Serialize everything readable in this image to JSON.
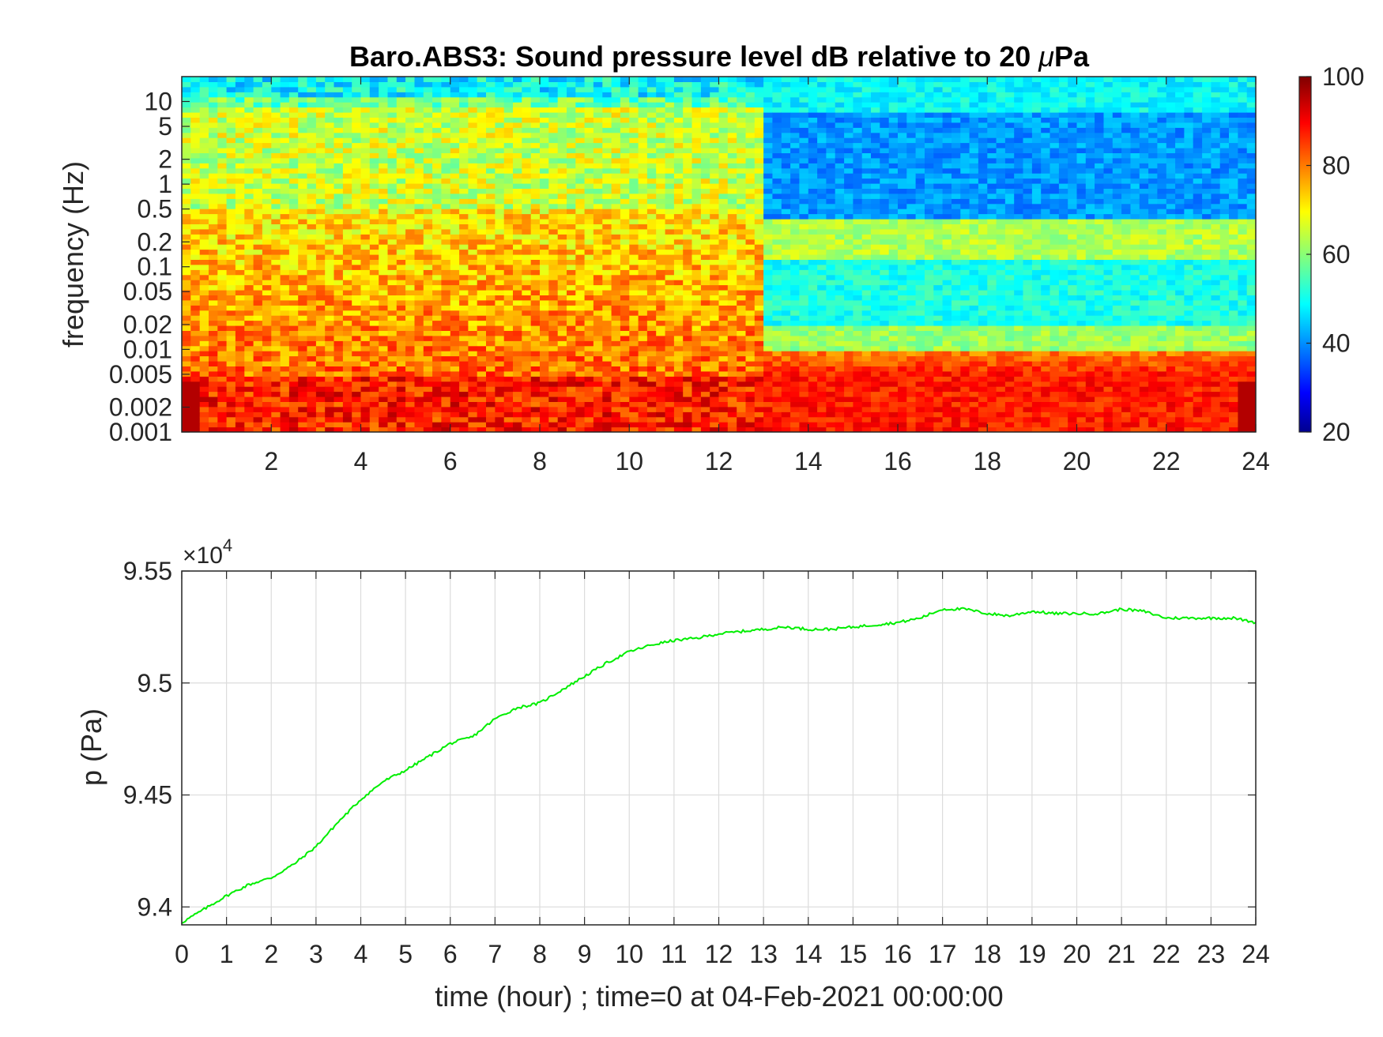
{
  "chart_data": [
    {
      "type": "heatmap",
      "title_prefix": "Baro.ABS3: Sound pressure level dB relative to 20 ",
      "title_mu": "μ",
      "title_suffix": "Pa",
      "xlabel": "",
      "ylabel": "frequency (Hz)",
      "xlim": [
        0,
        24
      ],
      "x_ticks": [
        2,
        4,
        6,
        8,
        10,
        12,
        14,
        16,
        18,
        20,
        22,
        24
      ],
      "x_tick_labels": [
        "2",
        "4",
        "6",
        "8",
        "10",
        "12",
        "14",
        "16",
        "18",
        "20",
        "22",
        "24"
      ],
      "y_scale": "log",
      "ylim": [
        0.001,
        20
      ],
      "y_ticks": [
        0.001,
        0.002,
        0.005,
        0.01,
        0.02,
        0.05,
        0.1,
        0.2,
        0.5,
        1,
        2,
        5,
        10
      ],
      "y_tick_labels": [
        "0.001",
        "0.002",
        "0.005",
        "0.01",
        "0.02",
        "0.05",
        "0.1",
        "0.2",
        "0.5",
        "1",
        "2",
        "5",
        "10"
      ],
      "colormap": "jet",
      "clim": [
        20,
        100
      ],
      "colorbar_ticks": [
        20,
        40,
        60,
        80,
        100
      ],
      "colorbar_tick_labels": [
        "20",
        "40",
        "60",
        "80",
        "100"
      ],
      "summary_levels_db": {
        "low_freq_band_0.001_to_0.005Hz": 88,
        "mid_band_0.01_to_0.5Hz_hours_0_to_13": 80,
        "mid_band_0.01_to_0.1Hz_hours_13_to_24": 52,
        "band_0.2Hz_hours_13_to_24": 64,
        "band_0.5_to_5Hz_hours_0_to_13": 66,
        "band_0.5_to_5Hz_hours_13_to_24": 42,
        "above_10Hz": 50
      }
    },
    {
      "type": "line",
      "ylabel": "p (Pa)",
      "xlabel": "time (hour) ; time=0 at 04-Feb-2021 00:00:00",
      "y_exponent_label": "×10",
      "y_exponent": "4",
      "xlim": [
        0,
        24
      ],
      "ylim": [
        9.392,
        9.55
      ],
      "x_ticks": [
        0,
        1,
        2,
        3,
        4,
        5,
        6,
        7,
        8,
        9,
        10,
        11,
        12,
        13,
        14,
        15,
        16,
        17,
        18,
        19,
        20,
        21,
        22,
        23,
        24
      ],
      "x_tick_labels": [
        "0",
        "1",
        "2",
        "3",
        "4",
        "5",
        "6",
        "7",
        "8",
        "9",
        "10",
        "11",
        "12",
        "13",
        "14",
        "15",
        "16",
        "17",
        "18",
        "19",
        "20",
        "21",
        "22",
        "23",
        "24"
      ],
      "y_ticks": [
        9.4,
        9.45,
        9.5,
        9.55
      ],
      "y_tick_labels": [
        "9.4",
        "9.45",
        "9.5",
        "9.55"
      ],
      "grid": true,
      "series": [
        {
          "color": "#00ee00",
          "x": [
            0,
            0.5,
            1,
            1.5,
            2,
            2.5,
            3,
            3.5,
            4,
            4.5,
            5,
            5.5,
            6,
            6.5,
            7,
            7.5,
            8,
            8.5,
            9,
            9.5,
            10,
            10.5,
            11,
            11.5,
            12,
            12.5,
            13,
            13.5,
            14,
            14.5,
            15,
            15.5,
            16,
            16.5,
            17,
            17.5,
            18,
            18.5,
            19,
            19.5,
            20,
            20.5,
            21,
            21.5,
            22,
            22.5,
            23,
            23.5,
            24
          ],
          "y": [
            9.393,
            9.399,
            9.405,
            9.41,
            9.413,
            9.419,
            9.427,
            9.438,
            9.448,
            9.456,
            9.461,
            9.467,
            9.473,
            9.476,
            9.484,
            9.489,
            9.491,
            9.497,
            9.503,
            9.509,
            9.514,
            9.517,
            9.519,
            9.52,
            9.522,
            9.523,
            9.524,
            9.525,
            9.524,
            9.524,
            9.525,
            9.526,
            9.527,
            9.529,
            9.533,
            9.533,
            9.531,
            9.53,
            9.532,
            9.531,
            9.531,
            9.531,
            9.533,
            9.532,
            9.529,
            9.529,
            9.529,
            9.529,
            9.527
          ]
        }
      ]
    }
  ]
}
